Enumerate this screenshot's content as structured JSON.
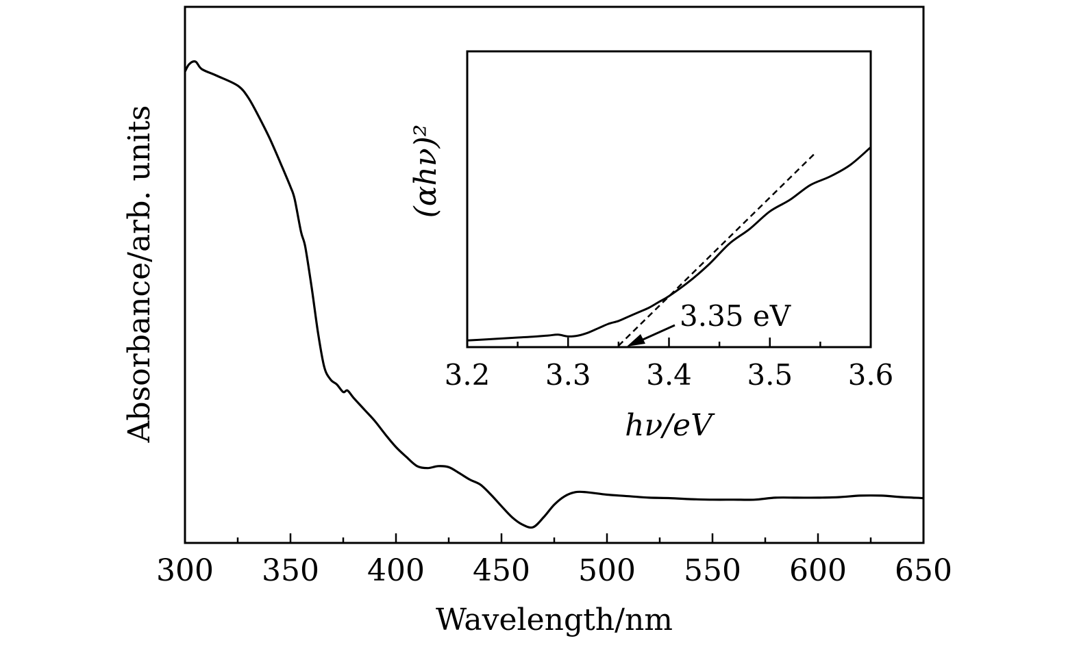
{
  "chart_data": [
    {
      "type": "line",
      "name": "main",
      "xlabel": "Wavelength/nm",
      "ylabel": "Absorbance/arb. units",
      "xlim": [
        300,
        650
      ],
      "ylim": [
        0,
        1
      ],
      "x_ticks": [
        "300",
        "350",
        "400",
        "450",
        "500",
        "550",
        "600",
        "650"
      ],
      "y_ticks": [],
      "series": [
        {
          "name": "Absorbance",
          "x": [
            300,
            302,
            305,
            308,
            315,
            325,
            330,
            335,
            340,
            345,
            350,
            352,
            355,
            357,
            360,
            363,
            366,
            369,
            372,
            375,
            377,
            380,
            385,
            390,
            395,
            400,
            405,
            410,
            415,
            420,
            425,
            430,
            435,
            440,
            445,
            450,
            455,
            460,
            465,
            470,
            475,
            480,
            485,
            490,
            500,
            510,
            520,
            530,
            540,
            550,
            560,
            570,
            580,
            590,
            600,
            610,
            620,
            630,
            640,
            650
          ],
          "y": [
            0.88,
            0.895,
            0.9,
            0.885,
            0.872,
            0.852,
            0.828,
            0.79,
            0.748,
            0.7,
            0.65,
            0.625,
            0.56,
            0.53,
            0.45,
            0.36,
            0.29,
            0.265,
            0.255,
            0.24,
            0.243,
            0.228,
            0.205,
            0.182,
            0.155,
            0.13,
            0.11,
            0.092,
            0.088,
            0.092,
            0.09,
            0.078,
            0.065,
            0.055,
            0.035,
            0.012,
            -0.01,
            -0.025,
            -0.03,
            -0.01,
            0.015,
            0.032,
            0.04,
            0.04,
            0.035,
            0.032,
            0.029,
            0.028,
            0.026,
            0.025,
            0.025,
            0.025,
            0.029,
            0.029,
            0.029,
            0.03,
            0.033,
            0.033,
            0.03,
            0.028
          ]
        }
      ]
    },
    {
      "type": "line",
      "name": "inset",
      "xlabel": "hν/eV",
      "ylabel": "(αhν)²",
      "xlim": [
        3.2,
        3.6
      ],
      "ylim": [
        0,
        1
      ],
      "x_ticks": [
        "3.2",
        "3.3",
        "3.4",
        "3.5",
        "3.6"
      ],
      "series": [
        {
          "name": "(αhν)²",
          "x": [
            3.2,
            3.22,
            3.24,
            3.26,
            3.28,
            3.29,
            3.3,
            3.31,
            3.32,
            3.33,
            3.34,
            3.35,
            3.36,
            3.37,
            3.38,
            3.39,
            3.4,
            3.42,
            3.44,
            3.46,
            3.48,
            3.5,
            3.52,
            3.54,
            3.56,
            3.58,
            3.6
          ],
          "y": [
            0.018,
            0.022,
            0.026,
            0.03,
            0.035,
            0.038,
            0.032,
            0.035,
            0.045,
            0.06,
            0.075,
            0.085,
            0.1,
            0.115,
            0.13,
            0.15,
            0.17,
            0.22,
            0.28,
            0.35,
            0.4,
            0.46,
            0.5,
            0.55,
            0.58,
            0.62,
            0.68
          ]
        },
        {
          "name": "linear fit",
          "style": "dashed",
          "x": [
            3.35,
            3.545
          ],
          "y": [
            0.0,
            0.66
          ]
        }
      ],
      "annotations": [
        {
          "text": "3.35 eV",
          "x": 3.35,
          "y": 0.0
        }
      ]
    }
  ]
}
